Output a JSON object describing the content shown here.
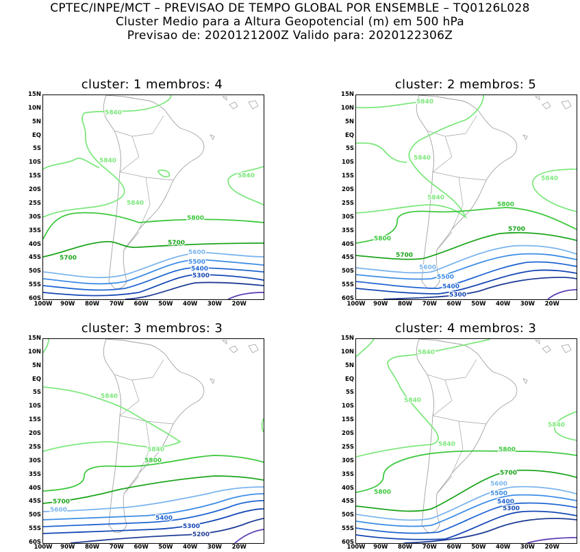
{
  "header": {
    "line1": "CPTEC/INPE/MCT – PREVISAO DE TEMPO GLOBAL POR ENSEMBLE – TQ0126L028",
    "line2": "Cluster Medio para a Altura Geopotencial (m) em 500 hPa",
    "line3": "Previsao de: 2020121200Z    Valido para: 2020122306Z"
  },
  "axes": {
    "lat_ticks": [
      "15N",
      "10N",
      "5N",
      "EQ",
      "5S",
      "10S",
      "15S",
      "20S",
      "25S",
      "30S",
      "35S",
      "40S",
      "45S",
      "50S",
      "55S",
      "60S"
    ],
    "lon_ticks": [
      "100W",
      "90W",
      "80W",
      "70W",
      "60W",
      "50W",
      "40W",
      "30W",
      "20W"
    ]
  },
  "panels": [
    {
      "title": "cluster: 1   membros: 4",
      "labels": [
        "5840",
        "5840",
        "5840",
        "5840",
        "5800",
        "5700",
        "5700",
        "5600",
        "5500",
        "5400",
        "5300"
      ]
    },
    {
      "title": "cluster: 2   membros: 5",
      "labels": [
        "5840",
        "5840",
        "5840",
        "5840",
        "5800",
        "5800",
        "5700",
        "5700",
        "5600",
        "5500",
        "5400",
        "5300"
      ]
    },
    {
      "title": "cluster: 3   membros: 3",
      "labels": [
        "5840",
        "5840",
        "5800",
        "5700",
        "5600",
        "5400",
        "5300",
        "5200"
      ]
    },
    {
      "title": "cluster: 4   membros: 3",
      "labels": [
        "5840",
        "5840",
        "5840",
        "5840",
        "5800",
        "5700",
        "5800",
        "5600",
        "5500",
        "5400",
        "5300"
      ]
    }
  ],
  "colors": {
    "c5840": "#7ee87e",
    "c5800": "#3cc83c",
    "c5700": "#1aa51a",
    "c5600": "#7ab4ee",
    "c5500": "#3c8ce6",
    "c5400": "#1e64d2",
    "c5300": "#1446b4",
    "c5200": "#1e3c96",
    "c5100": "#5a3cb4",
    "coast": "#a0a0a0"
  }
}
